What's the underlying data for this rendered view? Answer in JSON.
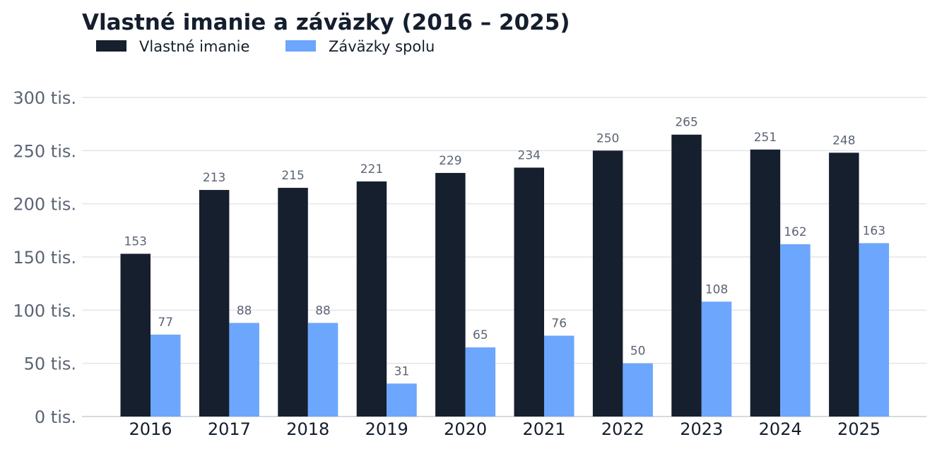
{
  "colors": {
    "equity": "#151f2e",
    "liabilities": "#6ca6fd",
    "grid": "#e2e5ea",
    "axis_text": "#5b6474",
    "title_text": "#141e2d"
  },
  "chart_data": {
    "type": "bar",
    "title": "Vlastné imanie a záväzky (2016 – 2025)",
    "xlabel": "",
    "ylabel": "",
    "categories": [
      "2016",
      "2017",
      "2018",
      "2019",
      "2020",
      "2021",
      "2022",
      "2023",
      "2024",
      "2025"
    ],
    "series": [
      {
        "name": "Vlastné imanie",
        "color": "#151f2e",
        "values": [
          153,
          213,
          215,
          221,
          229,
          234,
          250,
          265,
          251,
          248
        ],
        "labels": [
          "153",
          "213",
          "215",
          "221",
          "229",
          "234",
          "250",
          "265",
          "251",
          "248"
        ]
      },
      {
        "name": "Záväzky spolu",
        "color": "#6ca6fd",
        "values": [
          77,
          88,
          88,
          31,
          65,
          76,
          50,
          108,
          162,
          163
        ],
        "labels": [
          "77",
          "88",
          "88",
          "31",
          "65",
          "76",
          "50",
          "108",
          "162",
          "163"
        ]
      }
    ],
    "value_unit": "tis.",
    "ylim": [
      0,
      300
    ],
    "yticks": [
      0,
      50,
      100,
      150,
      200,
      250,
      300
    ],
    "ytick_labels": [
      "0 tis.",
      "50 tis.",
      "100 tis.",
      "150 tis.",
      "200 tis.",
      "250 tis.",
      "300 tis."
    ],
    "grid": true,
    "legend_position": "top-left"
  }
}
